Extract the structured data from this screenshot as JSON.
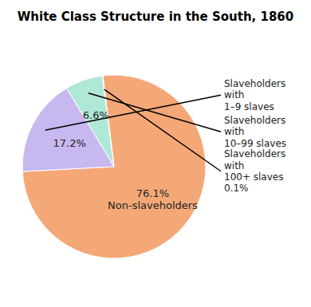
{
  "chart_data": {
    "type": "pie",
    "title": "White Class Structure in the South, 1860",
    "values": [
      76.1,
      17.2,
      6.6,
      0.1
    ],
    "value_labels": [
      "76.1%\nNon-slaveholders",
      "17.2%",
      "6.6%",
      null
    ],
    "colors": [
      "#F4A878",
      "#C8B8F0",
      "#B0E8D8",
      "#F0F040"
    ],
    "data_labels": true,
    "annotations": [
      null,
      "Slaveholders\nwith\n1–9 slaves",
      "Slaveholders\nwith\n10–99 slaves",
      "Slaveholders\nwith\n100+ slaves\n0.1%"
    ]
  }
}
